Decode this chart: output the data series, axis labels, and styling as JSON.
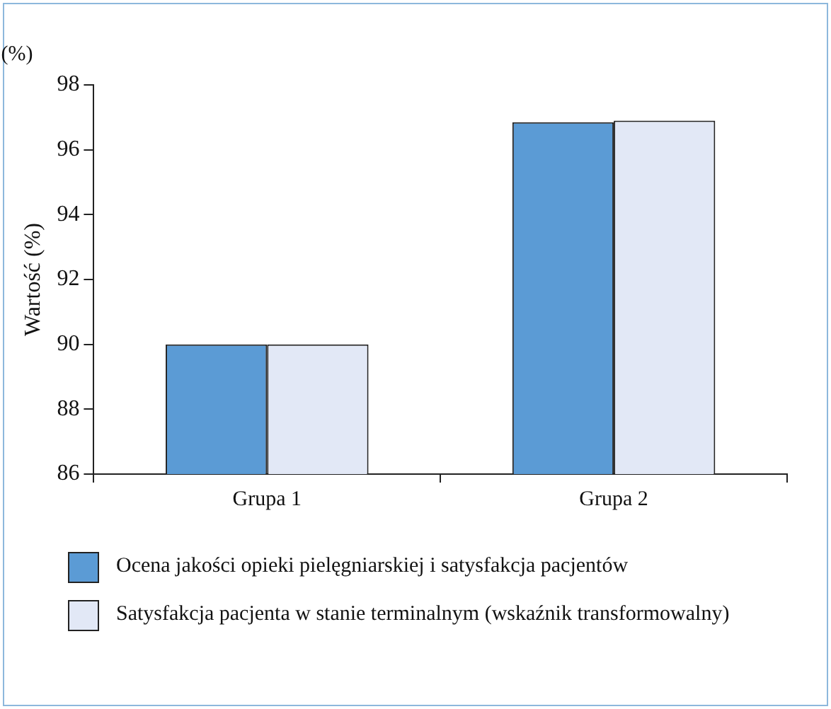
{
  "chart_data": {
    "type": "bar",
    "ylabel": "Wartość (%)",
    "annotations": [
      "(%)"
    ],
    "categories": [
      "Grupa 1",
      "Grupa 2"
    ],
    "series": [
      {
        "name": "Ocena jakości opieki pielęgniarskiej i satysfakcja pacjentów",
        "color": "#5b9bd5",
        "values": [
          90,
          96.85
        ]
      },
      {
        "name": "Satysfakcja pacjenta w stanie terminalnym (wskaźnik transformowalny)",
        "color": "#e2e8f6",
        "values": [
          90,
          96.9
        ]
      }
    ],
    "ylim": [
      86,
      98
    ],
    "yticks": [
      86,
      88,
      90,
      92,
      94,
      96,
      98
    ],
    "grid": false,
    "legend": "bottom"
  }
}
